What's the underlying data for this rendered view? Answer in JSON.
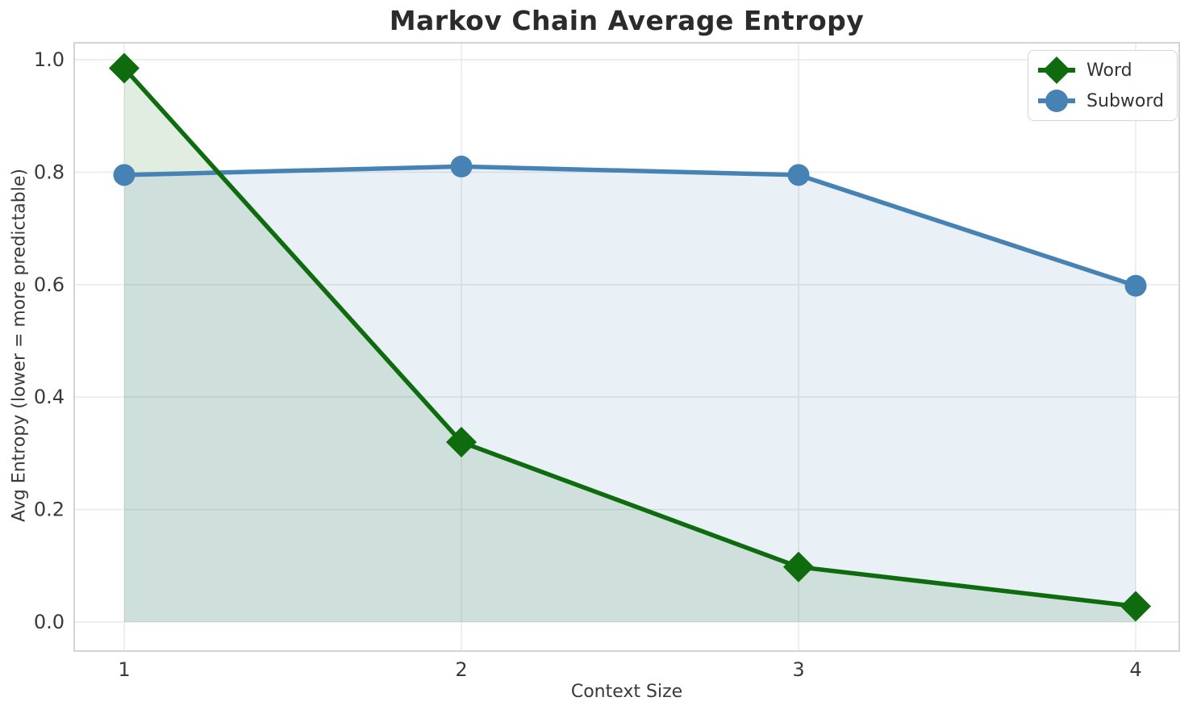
{
  "chart_data": {
    "type": "line",
    "title": "Markov Chain Average Entropy",
    "xlabel": "Context Size",
    "ylabel": "Avg Entropy (lower = more predictable)",
    "x": [
      1,
      2,
      3,
      4
    ],
    "xticks": [
      "1",
      "2",
      "3",
      "4"
    ],
    "yticks": [
      0.0,
      0.2,
      0.4,
      0.6,
      0.8,
      1.0
    ],
    "xlim": [
      0.85,
      4.15
    ],
    "ylim": [
      -0.05,
      1.03
    ],
    "grid": "on",
    "legend_position": "upper right",
    "fill_to_zero": true,
    "fill_opacity": 0.12,
    "series": [
      {
        "name": "Word",
        "marker": "diamond",
        "color": "#0e6c0e",
        "values": [
          0.985,
          0.32,
          0.098,
          0.028
        ]
      },
      {
        "name": "Subword",
        "marker": "circle",
        "color": "#4682b4",
        "values": [
          0.795,
          0.81,
          0.795,
          0.598
        ]
      }
    ],
    "colors": {
      "grid": "#e9e9e9",
      "spine": "#d4d4d4",
      "tick_label": "#3a3a3a",
      "title": "#2b2b2b"
    }
  }
}
